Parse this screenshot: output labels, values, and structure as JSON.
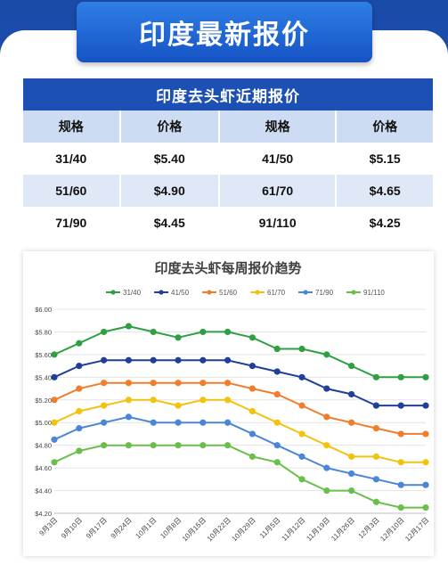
{
  "banner": {
    "title": "印度最新报价"
  },
  "table": {
    "title": "印度去头虾近期报价",
    "headers": [
      "规格",
      "价格",
      "规格",
      "价格"
    ],
    "rows": [
      [
        "31/40",
        "$5.40",
        "41/50",
        "$5.15"
      ],
      [
        "51/60",
        "$4.90",
        "61/70",
        "$4.65"
      ],
      [
        "71/90",
        "$4.45",
        "91/110",
        "$4.25"
      ]
    ]
  },
  "chart_data": {
    "type": "line",
    "title": "印度去头虾每周报价趋势",
    "legend_position": "top",
    "grid": true,
    "ylim": [
      4.2,
      6.0
    ],
    "yticks": [
      "$6.00",
      "$5.80",
      "$5.60",
      "$5.40",
      "$5.20",
      "$5.00",
      "$4.80",
      "$4.60",
      "$4.40",
      "$4.20"
    ],
    "ytick_values": [
      6.0,
      5.8,
      5.6,
      5.4,
      5.2,
      5.0,
      4.8,
      4.6,
      4.4,
      4.2
    ],
    "x": [
      "9月3日",
      "9月10日",
      "9月17日",
      "9月24日",
      "10月1日",
      "10月8日",
      "10月15日",
      "10月22日",
      "10月29日",
      "11月5日",
      "11月12日",
      "11月19日",
      "11月26日",
      "12月3日",
      "12月10日",
      "12月17日"
    ],
    "series": [
      {
        "name": "31/40",
        "color": "#2ea043",
        "values": [
          5.6,
          5.7,
          5.8,
          5.85,
          5.8,
          5.75,
          5.8,
          5.8,
          5.75,
          5.65,
          5.65,
          5.6,
          5.5,
          5.4,
          5.4,
          5.4
        ]
      },
      {
        "name": "41/50",
        "color": "#1f3f99",
        "values": [
          5.4,
          5.5,
          5.55,
          5.55,
          5.55,
          5.55,
          5.55,
          5.55,
          5.5,
          5.45,
          5.4,
          5.3,
          5.25,
          5.15,
          5.15,
          5.15
        ]
      },
      {
        "name": "51/60",
        "color": "#ef7d2b",
        "values": [
          5.2,
          5.3,
          5.35,
          5.35,
          5.35,
          5.35,
          5.35,
          5.35,
          5.3,
          5.25,
          5.15,
          5.05,
          5.0,
          4.95,
          4.9,
          4.9
        ]
      },
      {
        "name": "61/70",
        "color": "#f4c20d",
        "values": [
          5.0,
          5.1,
          5.15,
          5.2,
          5.2,
          5.15,
          5.2,
          5.2,
          5.1,
          5.0,
          4.9,
          4.8,
          4.7,
          4.7,
          4.65,
          4.65
        ]
      },
      {
        "name": "71/90",
        "color": "#4a86d8",
        "values": [
          4.85,
          4.95,
          5.0,
          5.05,
          5.0,
          5.0,
          5.0,
          5.0,
          4.9,
          4.8,
          4.7,
          4.6,
          4.55,
          4.5,
          4.45,
          4.45
        ]
      },
      {
        "name": "91/110",
        "color": "#6abf4b",
        "values": [
          4.65,
          4.75,
          4.8,
          4.8,
          4.8,
          4.8,
          4.8,
          4.8,
          4.7,
          4.65,
          4.5,
          4.4,
          4.4,
          4.3,
          4.25,
          4.25
        ]
      }
    ]
  }
}
